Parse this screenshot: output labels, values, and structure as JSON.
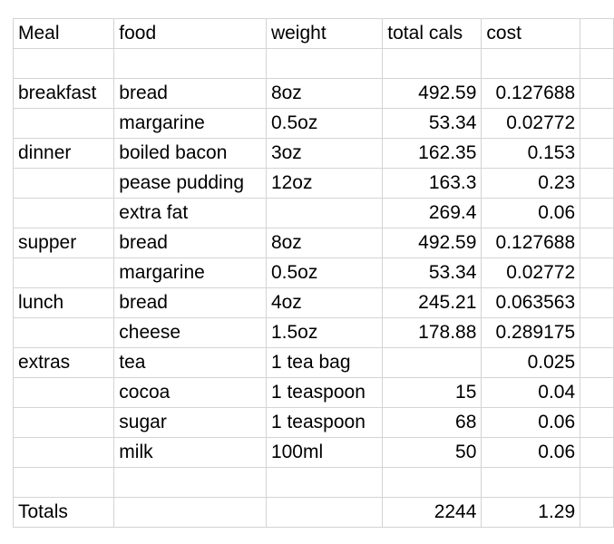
{
  "sheet": {
    "headers": {
      "meal": "Meal",
      "food": "food",
      "weight": "weight",
      "total_cals": "total cals",
      "cost": "cost"
    },
    "rows": [
      {
        "meal": "",
        "food": "",
        "weight": "",
        "cals": "",
        "cost": ""
      },
      {
        "meal": "breakfast",
        "food": "bread",
        "weight": "8oz",
        "cals": "492.59",
        "cost": "0.127688"
      },
      {
        "meal": "",
        "food": "margarine",
        "weight": "0.5oz",
        "cals": "53.34",
        "cost": "0.02772"
      },
      {
        "meal": "dinner",
        "food": "boiled bacon",
        "weight": "3oz",
        "cals": "162.35",
        "cost": "0.153"
      },
      {
        "meal": "",
        "food": "pease pudding",
        "weight": "12oz",
        "cals": "163.3",
        "cost": "0.23"
      },
      {
        "meal": "",
        "food": "extra fat",
        "weight": "",
        "cals": "269.4",
        "cost": "0.06"
      },
      {
        "meal": "supper",
        "food": "bread",
        "weight": "8oz",
        "cals": "492.59",
        "cost": "0.127688"
      },
      {
        "meal": "",
        "food": "margarine",
        "weight": "0.5oz",
        "cals": "53.34",
        "cost": "0.02772"
      },
      {
        "meal": "lunch",
        "food": "bread",
        "weight": "4oz",
        "cals": "245.21",
        "cost": "0.063563"
      },
      {
        "meal": "",
        "food": "cheese",
        "weight": "1.5oz",
        "cals": "178.88",
        "cost": "0.289175"
      },
      {
        "meal": "extras",
        "food": "tea",
        "weight": "1 tea bag",
        "cals": "",
        "cost": "0.025"
      },
      {
        "meal": "",
        "food": "cocoa",
        "weight": "1 teaspoon",
        "cals": "15",
        "cost": "0.04"
      },
      {
        "meal": "",
        "food": "sugar",
        "weight": "1 teaspoon",
        "cals": "68",
        "cost": "0.06"
      },
      {
        "meal": "",
        "food": "milk",
        "weight": "100ml",
        "cals": "50",
        "cost": "0.06"
      },
      {
        "meal": "",
        "food": "",
        "weight": "",
        "cals": "",
        "cost": ""
      },
      {
        "meal": "Totals",
        "food": "",
        "weight": "",
        "cals": "2244",
        "cost": "1.29"
      }
    ]
  }
}
